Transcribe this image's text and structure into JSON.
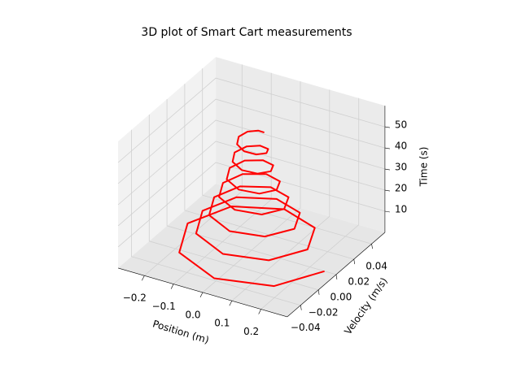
{
  "chart_data": {
    "type": "line3d",
    "title": "3D plot of Smart Cart measurements",
    "xlabel": "Position (m)",
    "ylabel": "Velocity (m/s)",
    "zlabel": "Time (s)",
    "xlim": [
      -0.29,
      0.29
    ],
    "ylim": [
      -0.055,
      0.055
    ],
    "zlim": [
      0,
      60
    ],
    "xticks": [
      {
        "value": -0.2,
        "label": "−0.2"
      },
      {
        "value": -0.1,
        "label": "−0.1"
      },
      {
        "value": 0,
        "label": "0.0"
      },
      0.1,
      0.2
    ],
    "yticks": [
      {
        "value": -0.04,
        "label": "−0.04"
      },
      {
        "value": -0.02,
        "label": "−0.02"
      },
      {
        "value": 0,
        "label": "0.00"
      },
      0.02,
      0.04
    ],
    "zticks": [
      10,
      20,
      30,
      40,
      50
    ],
    "grid": true,
    "series": [
      {
        "color": "#ff0000",
        "x": [
          0.25,
          0.171,
          0,
          -0.16,
          -0.219,
          -0.15,
          0,
          0.14,
          0.192,
          0.131,
          0,
          -0.123,
          -0.168,
          -0.115,
          0,
          0.107,
          0.147,
          0.1,
          0,
          -0.094,
          -0.128,
          -0.088,
          0,
          0.082,
          0.112,
          0.077,
          0,
          -0.072,
          -0.098,
          -0.067,
          0,
          0.063,
          0.086,
          0.059,
          0,
          -0.055,
          -0.075,
          -0.052,
          0,
          0.048,
          0.066,
          0.045,
          0,
          -0.042,
          -0.058,
          -0.039,
          0,
          0.037,
          0.051,
          0.035,
          0,
          -0.032,
          -0.044,
          -0.03,
          0,
          0.028
        ],
        "y": [
          0,
          -0.0308,
          -0.0421,
          -0.0288,
          0,
          0.0269,
          0.0369,
          0.0252,
          0,
          -0.0236,
          -0.0323,
          -0.022,
          0,
          0.0206,
          0.0282,
          0.0193,
          0,
          -0.018,
          -0.0247,
          -0.0169,
          0,
          0.0158,
          0.0216,
          0.0148,
          0,
          -0.0138,
          -0.0189,
          -0.0129,
          0,
          0.0121,
          0.0166,
          0.0113,
          0,
          -0.0106,
          -0.0145,
          -0.0099,
          0,
          0.0093,
          0.0127,
          0.0087,
          0,
          -0.0081,
          -0.0111,
          -0.0076,
          0,
          0.0071,
          0.0097,
          0.0066,
          0,
          -0.0062,
          -0.0085,
          -0.0058,
          0,
          0.0054,
          0.0074,
          0.0051
        ],
        "z": [
          0,
          1,
          2,
          3,
          4,
          5,
          6,
          7,
          8,
          9,
          10,
          11,
          12,
          13,
          14,
          15,
          16,
          17,
          18,
          19,
          20,
          21,
          22,
          23,
          24,
          25,
          26,
          27,
          28,
          29,
          30,
          31,
          32,
          33,
          34,
          35,
          36,
          37,
          38,
          39,
          40,
          41,
          42,
          43,
          44,
          45,
          46,
          47,
          48,
          49,
          50,
          51,
          52,
          53,
          54,
          55
        ]
      }
    ]
  }
}
